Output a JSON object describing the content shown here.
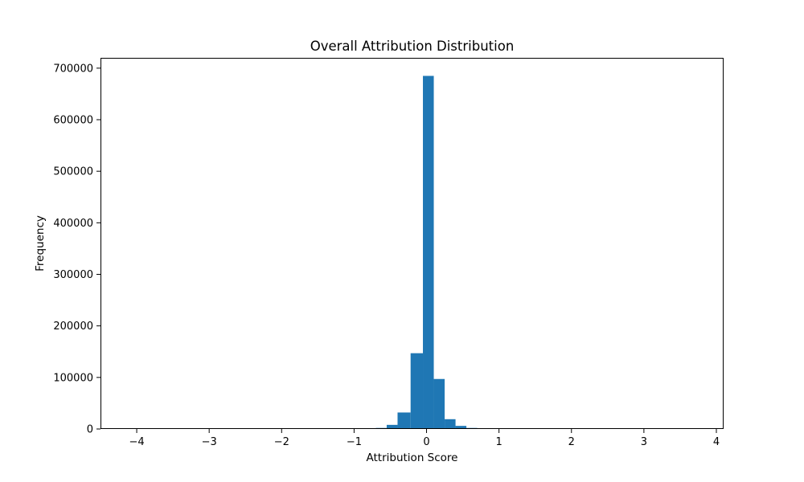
{
  "chart_data": {
    "type": "bar",
    "title": "Overall Attribution Distribution",
    "xlabel": "Attribution Score",
    "ylabel": "Frequency",
    "xlim": [
      -4.5,
      4.1
    ],
    "ylim": [
      0,
      720000
    ],
    "xticks": [
      {
        "value": -4,
        "label": "−4"
      },
      {
        "value": -3,
        "label": "−3"
      },
      {
        "value": -2,
        "label": "−2"
      },
      {
        "value": -1,
        "label": "−1"
      },
      {
        "value": 0,
        "label": "0"
      },
      {
        "value": 1,
        "label": "1"
      },
      {
        "value": 2,
        "label": "2"
      },
      {
        "value": 3,
        "label": "3"
      },
      {
        "value": 4,
        "label": "4"
      }
    ],
    "yticks": [
      {
        "value": 0,
        "label": "0"
      },
      {
        "value": 100000,
        "label": "100000"
      },
      {
        "value": 200000,
        "label": "200000"
      },
      {
        "value": 300000,
        "label": "300000"
      },
      {
        "value": 400000,
        "label": "400000"
      },
      {
        "value": 500000,
        "label": "500000"
      },
      {
        "value": 600000,
        "label": "600000"
      },
      {
        "value": 700000,
        "label": "700000"
      }
    ],
    "bar_color": "#1f77b4",
    "grid": false,
    "bins": [
      {
        "x0": -0.85,
        "x1": -0.7,
        "count": 800
      },
      {
        "x0": -0.7,
        "x1": -0.55,
        "count": 2000
      },
      {
        "x0": -0.55,
        "x1": -0.4,
        "count": 8000
      },
      {
        "x0": -0.4,
        "x1": -0.22,
        "count": 32000
      },
      {
        "x0": -0.22,
        "x1": -0.05,
        "count": 147000
      },
      {
        "x0": -0.05,
        "x1": 0.1,
        "count": 685000
      },
      {
        "x0": 0.1,
        "x1": 0.25,
        "count": 97000
      },
      {
        "x0": 0.25,
        "x1": 0.4,
        "count": 19000
      },
      {
        "x0": 0.4,
        "x1": 0.55,
        "count": 6000
      },
      {
        "x0": 0.55,
        "x1": 0.7,
        "count": 2000
      },
      {
        "x0": 0.7,
        "x1": 0.87,
        "count": 1000
      }
    ]
  }
}
